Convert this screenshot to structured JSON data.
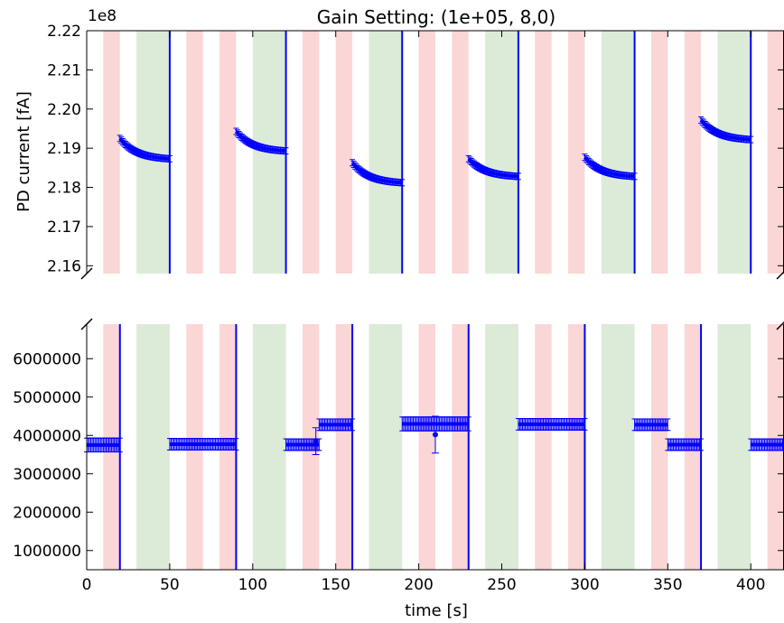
{
  "chart_data": {
    "type": "scatter",
    "title": "Gain Setting: (1e+05,  8,0)",
    "xlabel": "time [s]",
    "ylabel": "PD current [fA]",
    "xlim": [
      0,
      420
    ],
    "x_ticks": [
      "0",
      "50",
      "100",
      "150",
      "200",
      "250",
      "300",
      "350",
      "400"
    ],
    "colors": {
      "red_band": "#f8b4b4",
      "green_band": "#b7d8b2",
      "series": "#0000ff",
      "axes": "#000000"
    },
    "bands": {
      "red": [
        [
          10,
          20
        ],
        [
          60,
          70
        ],
        [
          80,
          90
        ],
        [
          130,
          140
        ],
        [
          150,
          160
        ],
        [
          200,
          210
        ],
        [
          220,
          230
        ],
        [
          270,
          280
        ],
        [
          290,
          300
        ],
        [
          340,
          350
        ],
        [
          360,
          370
        ],
        [
          410,
          420
        ]
      ],
      "green": [
        [
          30,
          50
        ],
        [
          100,
          120
        ],
        [
          170,
          190
        ],
        [
          240,
          260
        ],
        [
          310,
          330
        ],
        [
          380,
          400
        ]
      ]
    },
    "panels": [
      {
        "name": "top",
        "offset_text": "1e8",
        "ylim": [
          2.158,
          2.22
        ],
        "y_ticks": [
          2.16,
          2.17,
          2.18,
          2.19,
          2.2,
          2.21,
          2.22
        ],
        "y_tick_labels": [
          "2.16",
          "2.17",
          "2.18",
          "2.19",
          "2.20",
          "2.21",
          "2.22"
        ],
        "vlines": [
          50,
          120,
          190,
          260,
          330,
          400
        ],
        "segments": [
          {
            "x": [
              20,
              50
            ],
            "y_start": 2.1925,
            "y_end": 2.1873,
            "err": 0.0008
          },
          {
            "x": [
              90,
              120
            ],
            "y_start": 2.1943,
            "y_end": 2.1893,
            "err": 0.0008
          },
          {
            "x": [
              160,
              190
            ],
            "y_start": 2.1863,
            "y_end": 2.1812,
            "err": 0.0008
          },
          {
            "x": [
              230,
              260
            ],
            "y_start": 2.1873,
            "y_end": 2.1828,
            "err": 0.0008
          },
          {
            "x": [
              300,
              330
            ],
            "y_start": 2.1877,
            "y_end": 2.1828,
            "err": 0.0008
          },
          {
            "x": [
              370,
              400
            ],
            "y_start": 2.1972,
            "y_end": 2.1922,
            "err": 0.0008
          }
        ]
      },
      {
        "name": "bottom",
        "ylim": [
          500000,
          6900000
        ],
        "y_ticks": [
          1000000,
          2000000,
          3000000,
          4000000,
          5000000,
          6000000
        ],
        "y_tick_labels": [
          "1000000",
          "2000000",
          "3000000",
          "4000000",
          "5000000",
          "6000000"
        ],
        "vlines": [
          20,
          90,
          160,
          230,
          300,
          370
        ],
        "segments": [
          {
            "x": [
              0,
              20
            ],
            "y_start": 3750000,
            "y_end": 3750000,
            "err": 180000
          },
          {
            "x": [
              50,
              90
            ],
            "y_start": 3770000,
            "y_end": 3770000,
            "err": 150000
          },
          {
            "x": [
              120,
              140
            ],
            "y_start": 3760000,
            "y_end": 3760000,
            "err": 150000
          },
          {
            "x": [
              140,
              160
            ],
            "y_start": 4280000,
            "y_end": 4280000,
            "err": 150000
          },
          {
            "x": [
              190,
              230
            ],
            "y_start": 4300000,
            "y_end": 4300000,
            "err": 180000
          },
          {
            "x": [
              260,
              300
            ],
            "y_start": 4290000,
            "y_end": 4290000,
            "err": 150000
          },
          {
            "x": [
              330,
              350
            ],
            "y_start": 4280000,
            "y_end": 4280000,
            "err": 150000
          },
          {
            "x": [
              350,
              370
            ],
            "y_start": 3760000,
            "y_end": 3760000,
            "err": 150000
          },
          {
            "x": [
              400,
              420
            ],
            "y_start": 3760000,
            "y_end": 3760000,
            "err": 150000
          }
        ],
        "outliers": [
          {
            "x": 210,
            "y": 4020000,
            "err": 480000
          },
          {
            "x": 138,
            "y": 3850000,
            "err": 350000
          }
        ]
      }
    ]
  }
}
